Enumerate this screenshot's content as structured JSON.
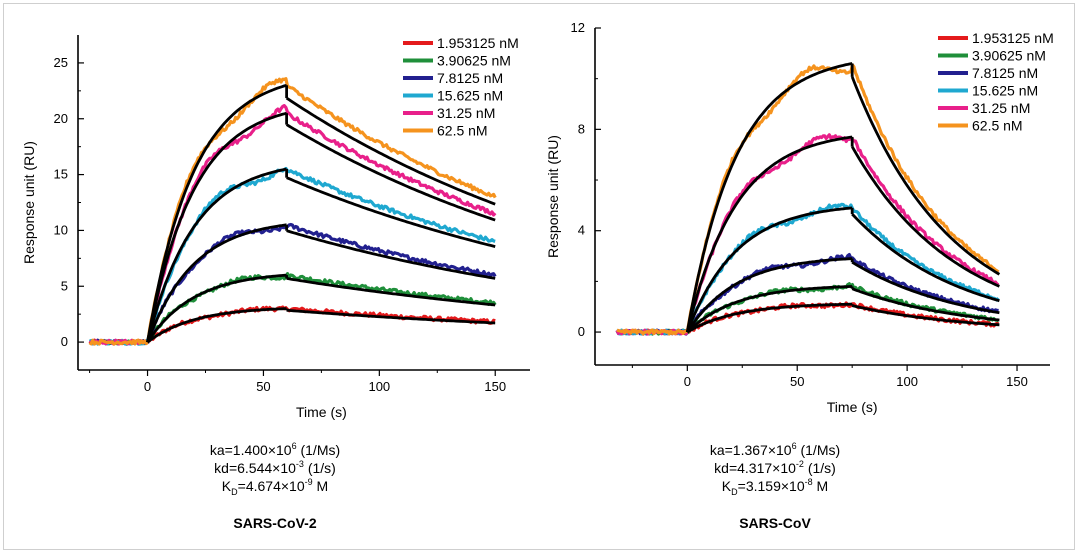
{
  "chart_data": [
    {
      "type": "line",
      "caption": "SARS-CoV-2",
      "xlabel": "Time (s)",
      "ylabel": "Response unit (RU)",
      "xlim": [
        -30,
        165
      ],
      "ylim": [
        -2.5,
        27.5
      ],
      "xticks": [
        0,
        50,
        100,
        150
      ],
      "yticks": [
        0,
        5,
        10,
        15,
        20,
        25
      ],
      "grid": false,
      "legend_position": "top-right",
      "t_assoc_end": 60,
      "t_start": -25,
      "t_end": 150,
      "fit_color": "#000000",
      "series": [
        {
          "name": "1.953125 nM",
          "color": "#e41a1c",
          "peak": 3.0,
          "end": 1.8
        },
        {
          "name": "3.90625 nM",
          "color": "#1f8f3a",
          "peak": 6.0,
          "end": 3.5
        },
        {
          "name": "7.8125 nM",
          "color": "#22208f",
          "peak": 10.5,
          "end": 6.0
        },
        {
          "name": "15.625 nM",
          "color": "#1fa8d0",
          "peak": 15.5,
          "end": 9.0
        },
        {
          "name": "31.25 nM",
          "color": "#e8208a",
          "peak": 20.5,
          "end": 11.5
        },
        {
          "name": "62.5 nM",
          "color": "#f5931e",
          "peak": 23.0,
          "end": 13.0
        }
      ],
      "kinetics": [
        {
          "prefix": "ka=1.400×10",
          "exp": "6",
          "suffix": " (1/Ms)"
        },
        {
          "prefix": "kd=6.544×10",
          "exp": "-3",
          "suffix": " (1/s)"
        },
        {
          "prefix": "K",
          "sub": "D",
          "prefix2": "=4.674×10",
          "exp": "-9",
          "suffix": " M"
        }
      ]
    },
    {
      "type": "line",
      "caption": "SARS-CoV",
      "xlabel": "Time (s)",
      "ylabel": "Response unit (RU)",
      "xlim": [
        -42,
        165
      ],
      "ylim": [
        -1.3,
        12.0
      ],
      "xticks": [
        0,
        50,
        100,
        150
      ],
      "yticks": [
        0,
        4,
        8,
        12
      ],
      "grid": false,
      "legend_position": "top-right",
      "t_assoc_end": 75,
      "t_start": -32,
      "t_end": 142,
      "fit_color": "#000000",
      "series": [
        {
          "name": "1.953125 nM",
          "color": "#e41a1c",
          "peak": 1.1,
          "end": 0.3
        },
        {
          "name": "3.90625 nM",
          "color": "#1f8f3a",
          "peak": 1.8,
          "end": 0.5
        },
        {
          "name": "7.8125 nM",
          "color": "#22208f",
          "peak": 2.9,
          "end": 0.8
        },
        {
          "name": "15.625 nM",
          "color": "#1fa8d0",
          "peak": 4.9,
          "end": 1.3
        },
        {
          "name": "31.25 nM",
          "color": "#e8208a",
          "peak": 7.7,
          "end": 1.9
        },
        {
          "name": "62.5 nM",
          "color": "#f5931e",
          "peak": 10.6,
          "end": 2.4
        }
      ],
      "kinetics": [
        {
          "prefix": "ka=1.367×10",
          "exp": "6",
          "suffix": " (1/Ms)"
        },
        {
          "prefix": "kd=4.317×10",
          "exp": "-2",
          "suffix": " (1/s)"
        },
        {
          "prefix": "K",
          "sub": "D",
          "prefix2": "=3.159×10",
          "exp": "-8",
          "suffix": " M"
        }
      ]
    }
  ]
}
